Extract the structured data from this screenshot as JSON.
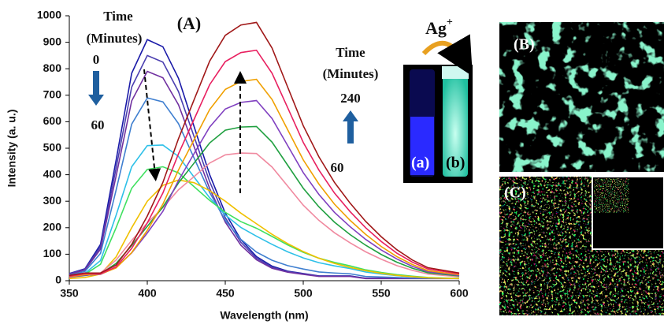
{
  "chart_data": {
    "type": "line",
    "x_label": "Wavelength (nm)",
    "y_label": "Intensity (a. u.)",
    "x": [
      350,
      360,
      370,
      380,
      390,
      400,
      410,
      420,
      430,
      440,
      450,
      460,
      470,
      480,
      490,
      500,
      510,
      520,
      530,
      540,
      550,
      560,
      570,
      580,
      590,
      600
    ],
    "xlim": [
      350,
      600
    ],
    "xticks": [
      350,
      400,
      450,
      500,
      550,
      600
    ],
    "ylim": [
      0,
      1000
    ],
    "yticks": [
      0,
      100,
      200,
      300,
      400,
      500,
      600,
      700,
      800,
      900,
      1000
    ],
    "series": [
      {
        "color": "#1a1aa8",
        "values": [
          27,
          45,
          137,
          455,
          783,
          910,
          883,
          764,
          582,
          400,
          255,
          155,
          91,
          55,
          36,
          27,
          18,
          18,
          18,
          9,
          9,
          9,
          9,
          9,
          9,
          9
        ]
      },
      {
        "color": "#4b3fb0",
        "values": [
          26,
          43,
          128,
          425,
          731,
          850,
          825,
          714,
          544,
          374,
          238,
          145,
          85,
          51,
          34,
          26,
          17,
          17,
          17,
          9,
          9,
          9,
          9,
          9,
          9,
          9
        ]
      },
      {
        "color": "#7030a0",
        "values": [
          24,
          40,
          119,
          395,
          679,
          790,
          766,
          664,
          506,
          348,
          221,
          134,
          79,
          47,
          32,
          24,
          16,
          16,
          16,
          8,
          8,
          8,
          8,
          8,
          8,
          8
        ]
      },
      {
        "color": "#3f7fd0",
        "values": [
          21,
          35,
          103,
          342,
          591,
          690,
          675,
          593,
          463,
          333,
          228,
          156,
          108,
          77,
          57,
          44,
          33,
          29,
          26,
          16,
          14,
          12,
          10,
          9,
          9,
          8
        ]
      },
      {
        "color": "#2ec0e8",
        "values": [
          16,
          28,
          76,
          247,
          430,
          510,
          512,
          469,
          391,
          313,
          248,
          201,
          168,
          137,
          109,
          86,
          68,
          56,
          46,
          33,
          25,
          19,
          15,
          11,
          10,
          9
        ]
      },
      {
        "color": "#40e060",
        "values": [
          14,
          24,
          62,
          200,
          349,
          420,
          430,
          407,
          355,
          303,
          258,
          223,
          198,
          167,
          135,
          107,
          85,
          69,
          56,
          41,
          31,
          23,
          17,
          12,
          10,
          9
        ]
      },
      {
        "color": "#f0c000",
        "values": [
          8,
          12,
          25,
          90,
          200,
          300,
          360,
          380,
          370,
          340,
          300,
          255,
          215,
          175,
          140,
          110,
          85,
          65,
          50,
          38,
          28,
          20,
          15,
          11,
          9,
          8
        ]
      },
      {
        "color": "#f08aa0",
        "values": [
          12,
          19,
          29,
          78,
          152,
          218,
          276,
          343,
          393,
          444,
          475,
          482,
          480,
          429,
          357,
          285,
          228,
          181,
          143,
          109,
          81,
          57,
          39,
          25,
          20,
          15
        ]
      },
      {
        "color": "#20a040",
        "values": [
          14,
          20,
          26,
          65,
          133,
          205,
          278,
          369,
          444,
          520,
          568,
          580,
          582,
          523,
          436,
          349,
          279,
          221,
          174,
          134,
          99,
          70,
          47,
          30,
          24,
          18
        ]
      },
      {
        "color": "#8040c0",
        "values": [
          14,
          21,
          24,
          50,
          105,
          180,
          262,
          378,
          480,
          580,
          648,
          673,
          680,
          612,
          510,
          408,
          326,
          258,
          204,
          156,
          116,
          82,
          54,
          34,
          27,
          20
        ]
      },
      {
        "color": "#f0a000",
        "values": [
          15,
          23,
          25,
          48,
          106,
          190,
          289,
          418,
          532,
          646,
          722,
          752,
          760,
          684,
          570,
          456,
          365,
          289,
          228,
          175,
          129,
          91,
          61,
          38,
          30,
          23
        ]
      },
      {
        "color": "#e82060",
        "values": [
          17,
          26,
          26,
          52,
          122,
          218,
          331,
          479,
          609,
          740,
          827,
          861,
          870,
          783,
          653,
          522,
          418,
          331,
          261,
          200,
          148,
          104,
          70,
          44,
          35,
          26
        ]
      },
      {
        "color": "#a01818",
        "values": [
          20,
          29,
          29,
          59,
          137,
          244,
          371,
          536,
          683,
          829,
          926,
          965,
          975,
          878,
          731,
          585,
          468,
          371,
          293,
          224,
          166,
          117,
          78,
          49,
          39,
          29
        ]
      }
    ],
    "annotations": [
      "(A)",
      "Time",
      "(Minutes)",
      "0",
      "60",
      "Time",
      "(Minutes)",
      "240",
      "60"
    ]
  },
  "photos": {
    "reagent": {
      "base": "Ag",
      "superscript": "+"
    },
    "vial_labels": [
      "(a)",
      "(b)"
    ],
    "panels": [
      "(B)",
      "(C)"
    ]
  }
}
